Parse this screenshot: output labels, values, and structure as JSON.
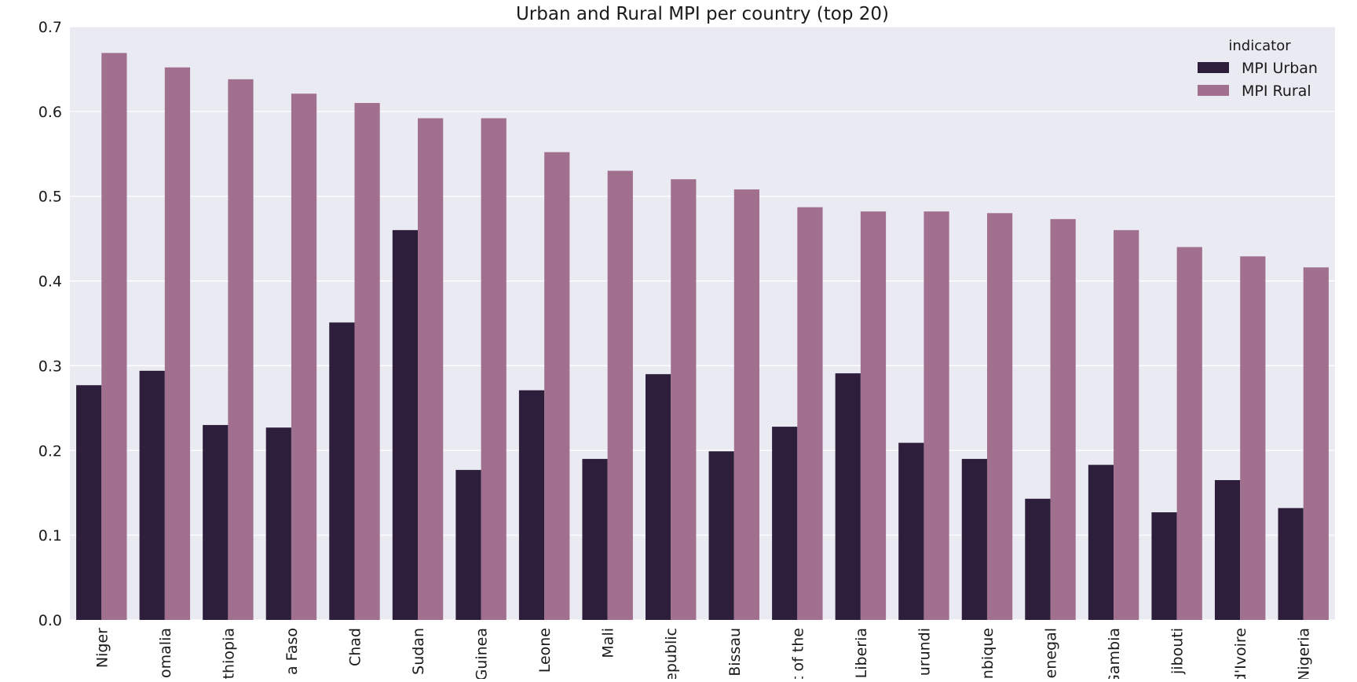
{
  "chart_data": {
    "type": "bar",
    "title": "Urban and Rural MPI per country (top 20)",
    "xlabel": "",
    "ylabel": "",
    "ylim": [
      0,
      0.7
    ],
    "yticks": [
      "0.0",
      "0.1",
      "0.2",
      "0.3",
      "0.4",
      "0.5",
      "0.6",
      "0.7"
    ],
    "grid": true,
    "legend": {
      "title": "indicator",
      "position": "top-right"
    },
    "categories": [
      "Niger",
      "omalia",
      "thiopia",
      "a Faso",
      "Chad",
      "Sudan",
      "Guinea",
      "Leone",
      "Mali",
      "epublic",
      "Bissau",
      "t of the",
      "Liberia",
      "urundi",
      "nbique",
      "enegal",
      "Gambia",
      "jibouti",
      "d'Ivoire",
      "Nigeria"
    ],
    "series": [
      {
        "name": "MPI Urban",
        "color": "#2d1f3b",
        "values": [
          0.277,
          0.294,
          0.23,
          0.227,
          0.351,
          0.46,
          0.177,
          0.271,
          0.19,
          0.29,
          0.199,
          0.228,
          0.291,
          0.209,
          0.19,
          0.143,
          0.183,
          0.127,
          0.165,
          0.132
        ]
      },
      {
        "name": "MPI Rural",
        "color": "#a1708e",
        "values": [
          0.669,
          0.652,
          0.638,
          0.621,
          0.61,
          0.592,
          0.592,
          0.552,
          0.53,
          0.52,
          0.508,
          0.487,
          0.482,
          0.482,
          0.48,
          0.473,
          0.46,
          0.44,
          0.429,
          0.416
        ]
      }
    ]
  },
  "colors": {
    "plot_background": "#eaeaf2",
    "grid": "#ffffff"
  }
}
